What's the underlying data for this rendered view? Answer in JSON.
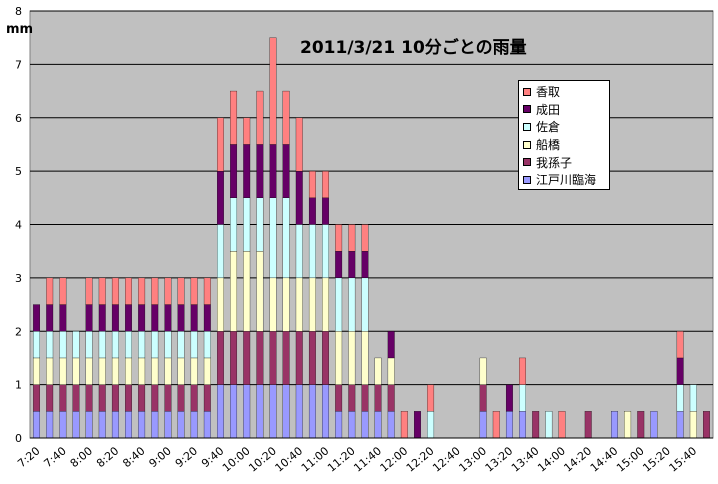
{
  "chart_data": {
    "type": "bar",
    "stacked": true,
    "title": "2011/3/21 10分ごとの雨量",
    "ylabel": "mm",
    "xlabel": "",
    "ylim": [
      0,
      8
    ],
    "yticks": [
      0,
      1,
      2,
      3,
      4,
      5,
      6,
      7,
      8
    ],
    "grid": true,
    "legend_position": "top-right",
    "x": [
      "7:20",
      "7:30",
      "7:40",
      "7:50",
      "8:00",
      "8:10",
      "8:20",
      "8:30",
      "8:40",
      "8:50",
      "9:00",
      "9:10",
      "9:20",
      "9:30",
      "9:40",
      "9:50",
      "10:00",
      "10:10",
      "10:20",
      "10:30",
      "10:40",
      "10:50",
      "11:00",
      "11:10",
      "11:20",
      "11:30",
      "11:40",
      "11:50",
      "12:00",
      "12:10",
      "12:20",
      "12:30",
      "12:40",
      "12:50",
      "13:00",
      "13:10",
      "13:20",
      "13:30",
      "13:40",
      "13:50",
      "14:00",
      "14:10",
      "14:20",
      "14:30",
      "14:40",
      "14:50",
      "15:00",
      "15:10",
      "15:20",
      "15:30",
      "15:40",
      "15:50"
    ],
    "xtick_labels": [
      "7:20",
      "7:40",
      "8:00",
      "8:20",
      "8:40",
      "9:00",
      "9:20",
      "9:40",
      "10:00",
      "10:20",
      "10:40",
      "11:00",
      "11:20",
      "11:40",
      "12:00",
      "12:20",
      "12:40",
      "13:00",
      "13:20",
      "13:40",
      "14:00",
      "14:20",
      "14:40",
      "15:00",
      "15:20",
      "15:40"
    ],
    "series": [
      {
        "name": "江戸川臨海",
        "color": "#9999ff",
        "values": [
          0.5,
          0,
          0.5,
          0,
          0.5,
          0,
          0,
          0.5,
          0,
          0.5,
          0,
          0.5,
          0,
          1,
          1,
          1,
          0.5,
          1,
          1,
          1,
          1,
          0,
          1,
          0,
          0.5,
          0,
          0.5,
          0,
          0,
          0,
          0,
          0,
          0,
          0.5,
          0,
          0,
          0,
          0,
          0,
          0,
          0,
          0.5,
          0,
          0,
          0,
          0.5,
          0,
          0,
          0,
          0.5,
          0,
          0.5
        ]
      },
      {
        "name": "我孫子",
        "color": "#993366",
        "values": [
          0.5,
          0,
          0.5,
          0,
          0.5,
          0,
          0,
          0.5,
          0,
          0.5,
          0,
          0.5,
          0,
          1,
          1,
          1,
          0.5,
          1,
          1,
          1,
          1,
          0,
          1,
          0,
          0.5,
          0,
          0.5,
          0,
          0,
          0,
          0,
          0,
          0,
          0.5,
          0,
          0,
          0,
          0,
          0,
          0,
          0,
          0.5,
          0,
          0,
          0,
          0.5,
          0,
          0,
          0,
          0.5,
          0,
          0.5
        ]
      },
      {
        "name": "船橋",
        "color": "#ffffcc",
        "values": [
          0.5,
          0,
          0.5,
          0,
          0.5,
          0,
          0,
          0.5,
          0,
          0.5,
          0,
          0.5,
          0,
          1,
          1,
          1,
          0.5,
          1,
          1,
          1,
          1,
          0,
          1,
          0,
          0.5,
          0,
          0.5,
          0,
          0,
          0,
          0,
          0,
          0,
          0.5,
          0,
          0,
          0,
          0,
          0,
          0,
          0,
          0.5,
          0,
          0,
          0,
          0.5,
          0,
          0,
          0,
          0.5,
          0,
          0.5
        ]
      },
      {
        "name": "佐倉",
        "color": "#ccffff",
        "values": [
          0.5,
          0,
          0.5,
          0,
          0.5,
          0,
          0,
          0.5,
          0,
          0.5,
          0,
          0.5,
          0,
          1,
          1,
          1,
          0.5,
          1,
          1,
          1,
          1,
          0,
          1,
          0,
          0.5,
          0,
          0.5,
          0,
          0,
          0,
          0,
          0,
          0,
          0.5,
          0,
          0,
          0,
          0,
          0,
          0,
          0,
          0.5,
          0,
          0,
          0,
          0.5,
          0,
          0,
          0,
          0.5,
          0,
          0.5
        ]
      },
      {
        "name": "成田",
        "color": "#660066",
        "values": [
          0.5,
          0,
          0.5,
          0,
          0.5,
          0,
          0,
          0.5,
          0,
          0.5,
          0,
          0.5,
          0,
          1,
          1,
          1,
          0.5,
          1,
          1,
          1,
          1,
          0,
          1,
          0,
          0.5,
          0,
          0.5,
          0,
          0,
          0,
          0,
          0,
          0,
          0.5,
          0,
          0,
          0,
          0,
          0,
          0,
          0,
          0.5,
          0,
          0,
          0,
          0.5,
          0,
          0,
          0,
          0.5,
          0,
          0.5
        ]
      },
      {
        "name": "香取",
        "color": "#ff8080",
        "values": [
          0,
          0,
          0.5,
          0,
          0.5,
          0,
          0,
          0.5,
          0,
          0.5,
          0,
          0.5,
          0,
          1,
          1,
          1,
          0.5,
          1,
          1,
          1,
          1,
          0,
          1,
          0,
          0.5,
          0,
          0.5,
          0,
          0,
          0,
          0,
          0,
          0,
          0.5,
          0,
          0,
          0,
          0,
          0,
          0,
          0,
          0.5,
          0,
          0,
          0,
          0.5,
          0,
          0,
          0,
          0.5,
          0,
          0.5
        ]
      }
    ],
    "bar_stacks": [
      [
        0.5,
        0.5,
        0.5,
        0.5,
        0.5,
        0,
        0,
        0,
        0,
        0,
        0
      ],
      [
        0.5,
        0.5,
        0.5,
        0.5,
        0.5,
        0.5,
        0.5
      ],
      [
        0.5,
        0.5,
        0.5,
        0.5,
        0.5,
        0.5,
        0.5
      ],
      [
        0.5,
        0.5,
        0.5,
        0.5
      ],
      [
        0.5,
        0.5,
        0.5,
        0.5,
        0.5,
        0.5,
        0.5
      ],
      [
        0.5,
        0.5,
        0.5,
        0.5,
        0.5,
        0.5
      ],
      [
        0.5,
        0.5,
        0.5,
        0.5,
        0.5,
        0.5
      ],
      [
        0.5,
        0.5,
        0.5,
        0.5,
        0.5,
        0.5
      ],
      [
        0.5,
        0.5,
        0.5,
        0.5,
        0.5,
        0.5,
        0.5,
        0.5
      ],
      [
        0.5,
        0.5,
        0.5,
        0.5,
        0.5,
        0.5,
        0.5
      ],
      [
        0.5,
        0.5,
        0.5,
        0.5,
        0.5,
        0.5,
        0.5
      ],
      [
        0.5,
        0.5,
        0.5,
        0.5,
        0.5,
        0.5,
        0.5,
        0.5,
        0.5
      ],
      [
        0.5,
        0.5,
        0.5,
        0.5,
        0.5,
        0.5,
        0.5,
        0.5,
        0.5,
        0.5
      ],
      [
        0.5,
        0.5,
        0.5,
        0.5,
        0.5,
        0.5,
        0.5,
        0.5,
        0.5
      ],
      [
        1,
        1,
        1,
        1,
        1,
        1
      ],
      [
        1,
        1,
        1.5,
        1,
        1,
        1
      ],
      [
        1,
        1,
        1.5,
        1,
        1,
        0.5
      ],
      [
        1,
        1,
        1.5,
        1,
        1,
        1
      ],
      [
        1,
        1,
        1,
        1.5,
        1,
        2
      ],
      [
        1,
        1,
        1,
        1.5,
        1,
        1
      ],
      [
        1,
        1,
        1,
        1,
        1,
        1
      ],
      [
        1,
        1,
        1,
        1,
        0.5,
        0.5
      ],
      [
        1,
        1,
        1,
        1,
        0.5,
        0.5
      ],
      [
        0.5,
        0.5,
        1,
        1,
        0.5,
        0.5
      ],
      [
        0.5,
        0.5,
        1,
        1,
        0.5,
        0.5
      ],
      [
        0.5,
        0.5,
        1,
        1,
        0.5,
        0.5
      ],
      [
        0.5,
        0.5,
        0.5,
        0,
        0,
        0
      ],
      [
        0.5,
        0.5,
        0.5,
        0,
        0.5,
        0
      ],
      [
        0,
        0,
        0,
        0,
        0,
        0.5
      ],
      [
        0,
        0,
        0,
        0,
        0.5,
        0
      ],
      [
        0,
        0,
        0,
        0.5,
        0,
        0.5
      ],
      [
        0,
        0,
        0,
        0,
        0,
        0
      ],
      [
        0,
        0,
        0,
        0,
        0,
        0
      ],
      [
        0,
        0,
        0,
        0,
        0,
        0
      ],
      [
        0.5,
        0.5,
        0.5,
        0,
        0,
        0
      ],
      [
        0,
        0,
        0,
        0,
        0,
        0.5
      ],
      [
        0.5,
        0,
        0,
        0,
        0.5,
        0
      ],
      [
        0.5,
        0,
        0,
        0.5,
        0,
        0.5
      ],
      [
        0,
        0.5,
        0,
        0,
        0,
        0
      ],
      [
        0,
        0,
        0,
        0.5,
        0,
        0
      ],
      [
        0,
        0,
        0,
        0,
        0,
        0.5
      ],
      [
        0,
        0,
        0,
        0,
        0,
        0
      ],
      [
        0,
        0.5,
        0,
        0,
        0,
        0
      ],
      [
        0,
        0,
        0,
        0,
        0,
        0
      ],
      [
        0.5,
        0,
        0,
        0,
        0,
        0
      ],
      [
        0,
        0,
        0.5,
        0,
        0,
        0
      ],
      [
        0,
        0.5,
        0,
        0,
        0,
        0
      ],
      [
        0.5,
        0,
        0,
        0,
        0,
        0
      ],
      [
        0,
        0,
        0,
        0,
        0,
        0
      ],
      [
        0.5,
        0,
        0,
        0.5,
        0.5,
        0.5
      ],
      [
        0,
        0,
        0.5,
        0.5,
        0,
        0
      ],
      [
        0,
        0.5,
        0,
        0,
        0,
        0
      ]
    ]
  }
}
